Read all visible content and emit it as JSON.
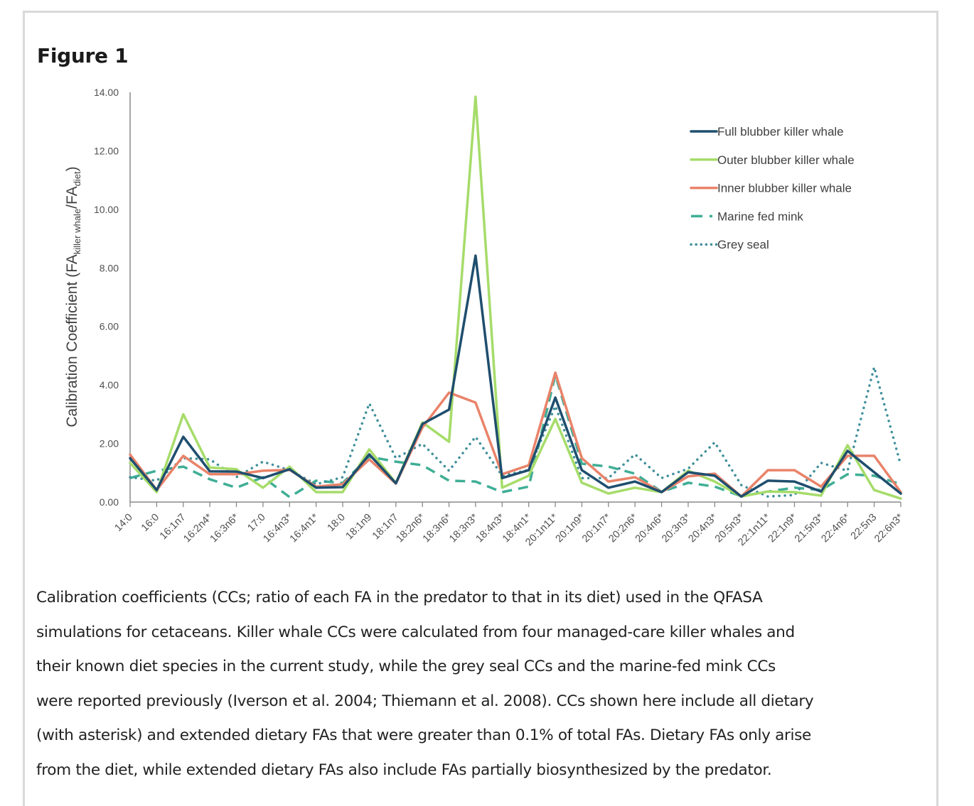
{
  "figure": {
    "title": "Figure 1",
    "caption_lines": [
      "Calibration coefficients (CCs; ratio of each FA in the predator to that in its diet) used in the QFASA",
      "simulations for cetaceans. Killer whale CCs were calculated from four managed-care killer whales and",
      "their known diet species in the current study, while the grey seal CCs and the marine-fed mink CCs",
      "were reported previously (Iverson et al. 2004; Thiemann et al. 2008). CCs shown here include all dietary",
      "(with asterisk) and extended dietary FAs that were greater than 0.1% of total FAs. Dietary FAs only arise",
      "from the diet, while extended dietary FAs also include FAs partially biosynthesized by the predator."
    ]
  },
  "chart_data": {
    "type": "line",
    "title": "",
    "xlabel": "",
    "ylabel": {
      "main": "Calibration Coefficient (FA",
      "sub1": "killer whale",
      "mid": "/FA",
      "sub2": "diet",
      "end": ")"
    },
    "ylim": [
      0,
      14
    ],
    "yticks": [
      "0.00",
      "2.00",
      "4.00",
      "6.00",
      "8.00",
      "10.00",
      "12.00",
      "14.00"
    ],
    "grid": false,
    "legend_position": "top-right",
    "categories": [
      "14:0",
      "16:0",
      "16:1n7",
      "16:2n4*",
      "16:3n6*",
      "17:0",
      "16:4n3*",
      "16:4n1*",
      "18:0",
      "18:1n9",
      "18:1n7",
      "18:2n6*",
      "18:3n6*",
      "18:3n3*",
      "18:4n3*",
      "18:4n1*",
      "20:1n11*",
      "20:1n9*",
      "20:1n7*",
      "20:2n6*",
      "20:4n6*",
      "20:3n3*",
      "20:4n3*",
      "20:5n3*",
      "22:1n11*",
      "22:1n9*",
      "21:5n3*",
      "22:4n6*",
      "22:5n3",
      "22:6n3*"
    ],
    "series": [
      {
        "name": "Full blubber killer whale",
        "color": "#1f4e6e",
        "style": "solid",
        "values": [
          1.5,
          0.41,
          2.23,
          1.05,
          1.04,
          0.82,
          1.12,
          0.49,
          0.51,
          1.63,
          0.64,
          2.67,
          3.16,
          8.42,
          0.82,
          1.09,
          3.57,
          1.09,
          0.49,
          0.7,
          0.34,
          1.02,
          0.9,
          0.19,
          0.73,
          0.7,
          0.36,
          1.75,
          1.02,
          0.29
        ]
      },
      {
        "name": "Outer blubber killer whale",
        "color": "#a6dc6a",
        "style": "solid",
        "values": [
          1.34,
          0.34,
          3.0,
          1.18,
          1.12,
          0.49,
          1.21,
          0.34,
          0.34,
          1.8,
          0.65,
          2.72,
          2.06,
          13.85,
          0.49,
          0.9,
          2.84,
          0.66,
          0.29,
          0.49,
          0.34,
          1.07,
          0.7,
          0.19,
          0.36,
          0.34,
          0.22,
          1.94,
          0.41,
          0.12
        ]
      },
      {
        "name": "Inner blubber killer whale",
        "color": "#e9836a",
        "style": "solid",
        "values": [
          1.62,
          0.41,
          1.58,
          0.95,
          0.95,
          1.07,
          1.1,
          0.53,
          0.61,
          1.46,
          0.63,
          2.55,
          3.74,
          3.4,
          0.95,
          1.26,
          4.42,
          1.5,
          0.7,
          0.85,
          0.34,
          0.88,
          0.97,
          0.19,
          1.09,
          1.09,
          0.53,
          1.58,
          1.58,
          0.34
        ]
      },
      {
        "name": "Marine fed mink",
        "color": "#3fae95",
        "style": "dashed",
        "values": [
          0.82,
          1.07,
          1.21,
          0.78,
          0.49,
          0.85,
          0.17,
          0.73,
          0.65,
          1.55,
          1.38,
          1.26,
          0.73,
          0.7,
          0.34,
          0.53,
          4.34,
          1.31,
          1.21,
          0.97,
          0.35,
          0.66,
          0.53,
          0.2,
          0.36,
          0.49,
          0.41,
          0.95,
          0.9,
          0.61
        ]
      },
      {
        "name": "Grey seal",
        "color": "#3f8f9a",
        "style": "dotted",
        "values": [
          0.85,
          0.73,
          1.5,
          1.46,
          0.85,
          1.38,
          1.09,
          0.61,
          0.85,
          3.37,
          1.5,
          1.99,
          1.07,
          2.23,
          0.9,
          1.1,
          3.28,
          0.82,
          0.82,
          1.63,
          0.82,
          1.14,
          2.04,
          0.58,
          0.19,
          0.24,
          1.34,
          1.07,
          4.61,
          1.26
        ]
      }
    ]
  }
}
